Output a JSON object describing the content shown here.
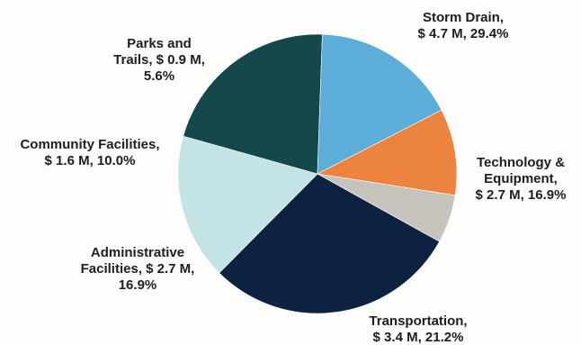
{
  "chart_data": {
    "type": "pie",
    "title": "",
    "unit": "$ M",
    "start_angle_deg": 119,
    "direction": "clockwise",
    "slices": [
      {
        "name": "Storm Drain",
        "value": 4.7,
        "percent": 29.4,
        "color": "#0d2240",
        "label_lines": [
          "Storm Drain,",
          "$ 4.7 M, 29.4%"
        ]
      },
      {
        "name": "Technology & Equipment",
        "value": 2.7,
        "percent": 16.9,
        "color": "#c3e3e4",
        "label_lines": [
          "Technology &",
          "Equipment,",
          "$ 2.7 M, 16.9%"
        ]
      },
      {
        "name": "Transportation",
        "value": 3.4,
        "percent": 21.2,
        "color": "#15484b",
        "label_lines": [
          "Transportation,",
          "$ 3.4 M, 21.2%"
        ]
      },
      {
        "name": "Administrative Facilities",
        "value": 2.7,
        "percent": 16.9,
        "color": "#5caed8",
        "label_lines": [
          "Administrative",
          "Facilities, $ 2.7 M,",
          "16.9%"
        ]
      },
      {
        "name": "Community Facilities",
        "value": 1.6,
        "percent": 10.0,
        "color": "#ec8440",
        "label_lines": [
          "Community Facilities,",
          "$ 1.6 M, 10.0%"
        ]
      },
      {
        "name": "Parks and Trails",
        "value": 0.9,
        "percent": 5.6,
        "color": "#c6c3bc",
        "label_lines": [
          "Parks and",
          "Trails, $ 0.9 M,",
          "5.6%"
        ]
      }
    ]
  }
}
